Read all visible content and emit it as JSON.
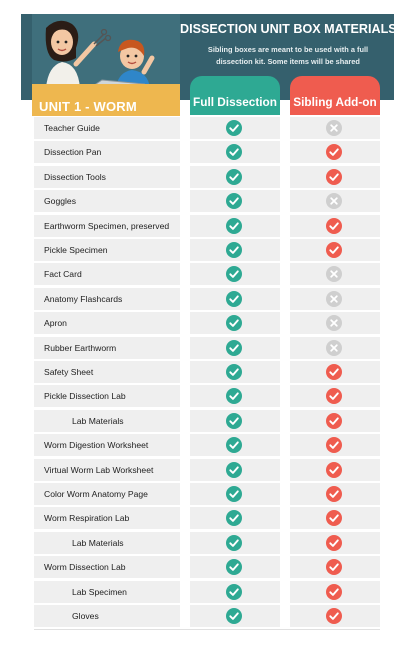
{
  "header": {
    "title": "DISSECTION UNIT BOX MATERIALS",
    "subtitle_line1": "Sibling boxes are meant to be used with a full",
    "subtitle_line2": "dissection kit. Some items will be shared",
    "unit_label": "UNIT 1 - WORM"
  },
  "columns": {
    "full": "Full Dissection",
    "sibling": "Sibling Add-on"
  },
  "colors": {
    "banner": "#35606d",
    "unit": "#eeb74f",
    "full_accent": "#2ea993",
    "sibling_accent": "#ef5c4f",
    "check_green": "#2ea993",
    "check_red": "#ef5c4f",
    "x_gray": "#cfcfcf"
  },
  "rows": [
    {
      "label": "Teacher Guide",
      "indent": false,
      "full": "check",
      "sibling": "x"
    },
    {
      "label": "Dissection Pan",
      "indent": false,
      "full": "check",
      "sibling": "check"
    },
    {
      "label": "Dissection Tools",
      "indent": false,
      "full": "check",
      "sibling": "check"
    },
    {
      "label": "Goggles",
      "indent": false,
      "full": "check",
      "sibling": "x"
    },
    {
      "label": "Earthworm Specimen, preserved",
      "indent": false,
      "full": "check",
      "sibling": "check"
    },
    {
      "label": "Pickle Specimen",
      "indent": false,
      "full": "check",
      "sibling": "check"
    },
    {
      "label": "Fact Card",
      "indent": false,
      "full": "check",
      "sibling": "x"
    },
    {
      "label": "Anatomy Flashcards",
      "indent": false,
      "full": "check",
      "sibling": "x"
    },
    {
      "label": "Apron",
      "indent": false,
      "full": "check",
      "sibling": "x"
    },
    {
      "label": "Rubber Earthworm",
      "indent": false,
      "full": "check",
      "sibling": "x"
    },
    {
      "label": "Safety Sheet",
      "indent": false,
      "full": "check",
      "sibling": "check"
    },
    {
      "label": "Pickle Dissection Lab",
      "indent": false,
      "full": "check",
      "sibling": "check"
    },
    {
      "label": "Lab Materials",
      "indent": true,
      "full": "check",
      "sibling": "check"
    },
    {
      "label": "Worm Digestion Worksheet",
      "indent": false,
      "full": "check",
      "sibling": "check"
    },
    {
      "label": "Virtual Worm Lab Worksheet",
      "indent": false,
      "full": "check",
      "sibling": "check"
    },
    {
      "label": "Color Worm Anatomy Page",
      "indent": false,
      "full": "check",
      "sibling": "check"
    },
    {
      "label": "Worm Respiration Lab",
      "indent": false,
      "full": "check",
      "sibling": "check"
    },
    {
      "label": "Lab Materials",
      "indent": true,
      "full": "check",
      "sibling": "check"
    },
    {
      "label": "Worm Dissection Lab",
      "indent": false,
      "full": "check",
      "sibling": "check"
    },
    {
      "label": "Lab Specimen",
      "indent": true,
      "full": "check",
      "sibling": "check"
    },
    {
      "label": "Gloves",
      "indent": true,
      "full": "check",
      "sibling": "check"
    }
  ]
}
